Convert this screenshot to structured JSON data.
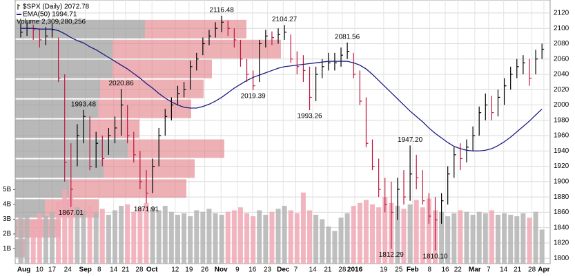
{
  "chart_data": {
    "type": "ohlc",
    "grid": true,
    "xlim": [
      -0.88,
      84.3
    ],
    "xticks": [
      {
        "value": 0.5,
        "label": "Aug"
      },
      {
        "value": 3,
        "label": "10"
      },
      {
        "value": 5,
        "label": "17"
      },
      {
        "value": 7.5,
        "label": "24"
      },
      {
        "value": 10.3,
        "label": "Sep"
      },
      {
        "value": 12.5,
        "label": "8"
      },
      {
        "value": 14.8,
        "label": "14"
      },
      {
        "value": 16.7,
        "label": "21"
      },
      {
        "value": 18.9,
        "label": "28"
      },
      {
        "value": 20.9,
        "label": "Oct"
      },
      {
        "value": 24.6,
        "label": "12"
      },
      {
        "value": 26.8,
        "label": "19"
      },
      {
        "value": 29.3,
        "label": "26"
      },
      {
        "value": 31.9,
        "label": "Nov"
      },
      {
        "value": 34.5,
        "label": "9"
      },
      {
        "value": 36.9,
        "label": "16"
      },
      {
        "value": 39.3,
        "label": "23"
      },
      {
        "value": 41.8,
        "label": "Dec"
      },
      {
        "value": 43.8,
        "label": "7"
      },
      {
        "value": 46.5,
        "label": "14"
      },
      {
        "value": 48.9,
        "label": "21"
      },
      {
        "value": 51.2,
        "label": "28"
      },
      {
        "value": 53.2,
        "label": "2016"
      },
      {
        "value": 57.8,
        "label": "19"
      },
      {
        "value": 60.2,
        "label": "25"
      },
      {
        "value": 62.4,
        "label": "Feb"
      },
      {
        "value": 65.1,
        "label": "8"
      },
      {
        "value": 67.6,
        "label": "16"
      },
      {
        "value": 69.6,
        "label": "22"
      },
      {
        "value": 72.3,
        "label": "Mar"
      },
      {
        "value": 74.5,
        "label": "7"
      },
      {
        "value": 76.9,
        "label": "14"
      },
      {
        "value": 79.1,
        "label": "21"
      },
      {
        "value": 81.4,
        "label": "28"
      },
      {
        "value": 83.3,
        "label": "Apr"
      }
    ],
    "ylim": [
      1793,
      2137
    ],
    "yticks": [
      1800,
      1820,
      1840,
      1860,
      1880,
      1900,
      1920,
      1940,
      1960,
      1980,
      2000,
      2020,
      2040,
      2060,
      2080,
      2100,
      2120
    ],
    "y2lim": [
      0,
      17.8
    ],
    "y2ticks": [
      {
        "value": 1,
        "label": "1B"
      },
      {
        "value": 2,
        "label": "2B"
      },
      {
        "value": 3,
        "label": "3B"
      },
      {
        "value": 4,
        "label": "4B"
      },
      {
        "value": 5,
        "label": "5B"
      }
    ],
    "series": [
      {
        "name": "$SPX (Daily) 2072.78",
        "color": "#000000",
        "down_color": "#c0143c",
        "high": [
          2107,
          2108,
          2105,
          2100,
          2102,
          2106,
          2088,
          2040,
          1950,
          1975,
          1993.48,
          1985,
          1965,
          1960,
          1970,
          1985,
          2020.86,
          2000,
          1965,
          1940,
          1915,
          1930,
          1970,
          1995,
          2010,
          2025,
          2030,
          2058,
          2068,
          2088,
          2098,
          2108,
          2116.48,
          2110,
          2100,
          2085,
          2060,
          2045,
          2085,
          2098,
          2096,
          2100,
          2104.27,
          2092,
          2070,
          2065,
          2050,
          2050,
          2060,
          2068,
          2068,
          2075,
          2081.56,
          2068,
          2045,
          2010,
          1955,
          1930,
          1905,
          1900,
          1905,
          1915,
          1947.2,
          1935,
          1915,
          1885,
          1880,
          1885,
          1920,
          1945,
          1950,
          1955,
          1972,
          1998,
          2015,
          2012,
          2020,
          2035,
          2050,
          2060,
          2065,
          2060,
          2072,
          2080
        ],
        "low": [
          2088,
          2090,
          2085,
          2075,
          2078,
          2088,
          2030,
          1900,
          1867.01,
          1920,
          1950,
          1915,
          1918,
          1920,
          1935,
          1950,
          1960,
          1950,
          1925,
          1890,
          1871.91,
          1885,
          1920,
          1960,
          1980,
          2000,
          2010,
          2020,
          2045,
          2065,
          2078,
          2088,
          2095,
          2090,
          2075,
          2050,
          2030,
          2019.39,
          2030,
          2075,
          2078,
          2080,
          2085,
          2055,
          2040,
          2030,
          1993.26,
          2005,
          2035,
          2045,
          2045,
          2050,
          2060,
          2035,
          2000,
          1945,
          1915,
          1880,
          1860,
          1812.29,
          1850,
          1870,
          1875,
          1890,
          1870,
          1845,
          1810.1,
          1845,
          1870,
          1905,
          1915,
          1925,
          1940,
          1960,
          1980,
          1980,
          1985,
          2000,
          2020,
          2035,
          2040,
          2025,
          2040,
          2060
        ],
        "close": [
          2095,
          2100,
          2098,
          2085,
          2090,
          2098,
          2035,
          1925,
          1890,
          1960,
          1985,
          1920,
          1950,
          1930,
          1960,
          1970,
          2000,
          1960,
          1935,
          1900,
          1885,
          1920,
          1960,
          1985,
          2000,
          2015,
          2020,
          2050,
          2060,
          2080,
          2090,
          2100,
          2108,
          2100,
          2085,
          2060,
          2040,
          2025,
          2080,
          2090,
          2088,
          2092,
          2095,
          2060,
          2050,
          2045,
          2010,
          2040,
          2050,
          2055,
          2055,
          2065,
          2070,
          2040,
          2005,
          1950,
          1920,
          1890,
          1870,
          1860,
          1890,
          1880,
          1910,
          1905,
          1875,
          1855,
          1850,
          1875,
          1910,
          1935,
          1930,
          1945,
          1960,
          1990,
          2000,
          1990,
          2010,
          2025,
          2040,
          2050,
          2055,
          2035,
          2060,
          2072.78
        ]
      },
      {
        "name": "EMA(50) 1994.71",
        "color": "#1c1c80",
        "values": [
          2100,
          2100,
          2100,
          2099,
          2099,
          2099,
          2097,
          2093,
          2088,
          2084,
          2081,
          2076,
          2072,
          2067,
          2062,
          2057,
          2052,
          2047,
          2041,
          2035,
          2028,
          2022,
          2015,
          2009,
          2004,
          2000,
          1997,
          1996,
          1996,
          1998,
          2001,
          2005,
          2010,
          2016,
          2022,
          2027,
          2032,
          2036,
          2039,
          2042,
          2045,
          2048,
          2050,
          2051,
          2052,
          2053,
          2054,
          2055,
          2056,
          2057,
          2057,
          2057,
          2057,
          2055,
          2052,
          2047,
          2040,
          2032,
          2024,
          2016,
          2008,
          2000,
          1992,
          1985,
          1978,
          1970,
          1963,
          1957,
          1951,
          1946,
          1943,
          1941,
          1940,
          1940,
          1941,
          1943,
          1947,
          1952,
          1958,
          1965,
          1972,
          1979,
          1987,
          1994.71
        ]
      },
      {
        "name": "Volume 2,309,280,256",
        "color": "#b4b4b4",
        "down_color": "#f0a8b4",
        "axis": "y2",
        "values": [
          3.1,
          3.3,
          3.0,
          3.4,
          3.2,
          3.5,
          4.2,
          5.0,
          4.6,
          3.8,
          3.6,
          3.9,
          3.4,
          3.7,
          3.3,
          3.6,
          3.9,
          4.0,
          3.5,
          3.8,
          4.1,
          3.8,
          3.6,
          3.9,
          3.5,
          3.3,
          3.4,
          3.2,
          3.6,
          3.5,
          3.7,
          3.4,
          3.3,
          3.5,
          3.6,
          3.8,
          3.4,
          3.2,
          3.6,
          3.3,
          3.5,
          3.7,
          3.9,
          3.6,
          3.4,
          4.8,
          3.6,
          3.3,
          3.0,
          2.5,
          2.2,
          3.1,
          3.4,
          3.9,
          4.1,
          4.3,
          4.0,
          3.8,
          4.5,
          4.1,
          3.9,
          3.7,
          4.0,
          4.3,
          3.8,
          4.4,
          3.6,
          3.5,
          3.2,
          3.4,
          3.6,
          3.5,
          3.3,
          3.5,
          3.4,
          3.6,
          3.3,
          3.4,
          3.3,
          3.2,
          3.4,
          3.1,
          3.5,
          2.3
        ]
      }
    ],
    "volume_by_price": {
      "bins": [
        1800,
        1826,
        1852,
        1878,
        1904,
        1930,
        1956,
        1982,
        2008,
        2034,
        2060,
        2086,
        2112
      ],
      "up": [
        5,
        3,
        43,
        78,
        128,
        163,
        110,
        120,
        123,
        141,
        141,
        188
      ],
      "down": [
        10,
        63,
        78,
        170,
        132,
        140,
        70,
        135,
        150,
        144,
        244,
        147
      ],
      "up_color": "#9a9a9a",
      "down_color": "#e07b84"
    },
    "annotations": [
      {
        "index": 10,
        "value": 1993.48,
        "label": "1993.48"
      },
      {
        "index": 16,
        "value": 2020.86,
        "label": "2020.86"
      },
      {
        "index": 8,
        "value": 1867.01,
        "label": "1867.01"
      },
      {
        "index": 20,
        "value": 1871.91,
        "label": "1871.91"
      },
      {
        "index": 32,
        "value": 2116.48,
        "label": "2116.48"
      },
      {
        "index": 37,
        "value": 2019.39,
        "label": "2019.39"
      },
      {
        "index": 42,
        "value": 2104.27,
        "label": "2104.27"
      },
      {
        "index": 46,
        "value": 1993.26,
        "label": "1993.26"
      },
      {
        "index": 52,
        "value": 2081.56,
        "label": "2081.56"
      },
      {
        "index": 59,
        "value": 1812.29,
        "label": "1812.29"
      },
      {
        "index": 62,
        "value": 1947.2,
        "label": "1947.20"
      },
      {
        "index": 66,
        "value": 1810.1,
        "label": "1810.10"
      }
    ]
  }
}
